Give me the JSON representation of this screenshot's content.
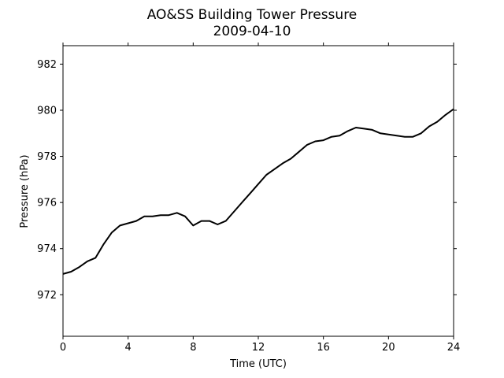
{
  "chart_data": {
    "type": "line",
    "title": "AO&SS Building Tower Pressure",
    "subtitle": "2009-04-10",
    "xlabel": "Time (UTC)",
    "ylabel": "Pressure (hPa)",
    "xlim": [
      0,
      24
    ],
    "ylim": [
      970.2,
      982.8
    ],
    "xticks": [
      0,
      4,
      8,
      12,
      16,
      20,
      24
    ],
    "yticks": [
      972,
      974,
      976,
      978,
      980,
      982
    ],
    "grid": false,
    "line_color": "#000000",
    "series": [
      {
        "x": [
          0,
          0.5,
          1,
          1.5,
          2,
          2.5,
          3,
          3.5,
          4,
          4.5,
          5,
          5.5,
          6,
          6.5,
          7,
          7.5,
          8,
          8.5,
          9,
          9.5,
          10,
          10.5,
          11,
          11.5,
          12,
          12.5,
          13,
          13.5,
          14,
          14.5,
          15,
          15.5,
          16,
          16.5,
          17,
          17.5,
          18,
          18.5,
          19,
          19.5,
          20,
          20.5,
          21,
          21.5,
          22,
          22.5,
          23,
          23.5,
          24
        ],
        "y": [
          972.9,
          973.0,
          973.2,
          973.45,
          973.6,
          974.2,
          974.7,
          975.0,
          975.1,
          975.2,
          975.4,
          975.4,
          975.45,
          975.45,
          975.55,
          975.4,
          975.0,
          975.2,
          975.2,
          975.05,
          975.2,
          975.6,
          976.0,
          976.4,
          976.8,
          977.2,
          977.45,
          977.7,
          977.9,
          978.2,
          978.5,
          978.65,
          978.7,
          978.85,
          978.9,
          979.1,
          979.25,
          979.2,
          979.15,
          979.0,
          978.95,
          978.9,
          978.85,
          978.85,
          979.0,
          979.3,
          979.5,
          979.8,
          980.05
        ]
      }
    ]
  }
}
